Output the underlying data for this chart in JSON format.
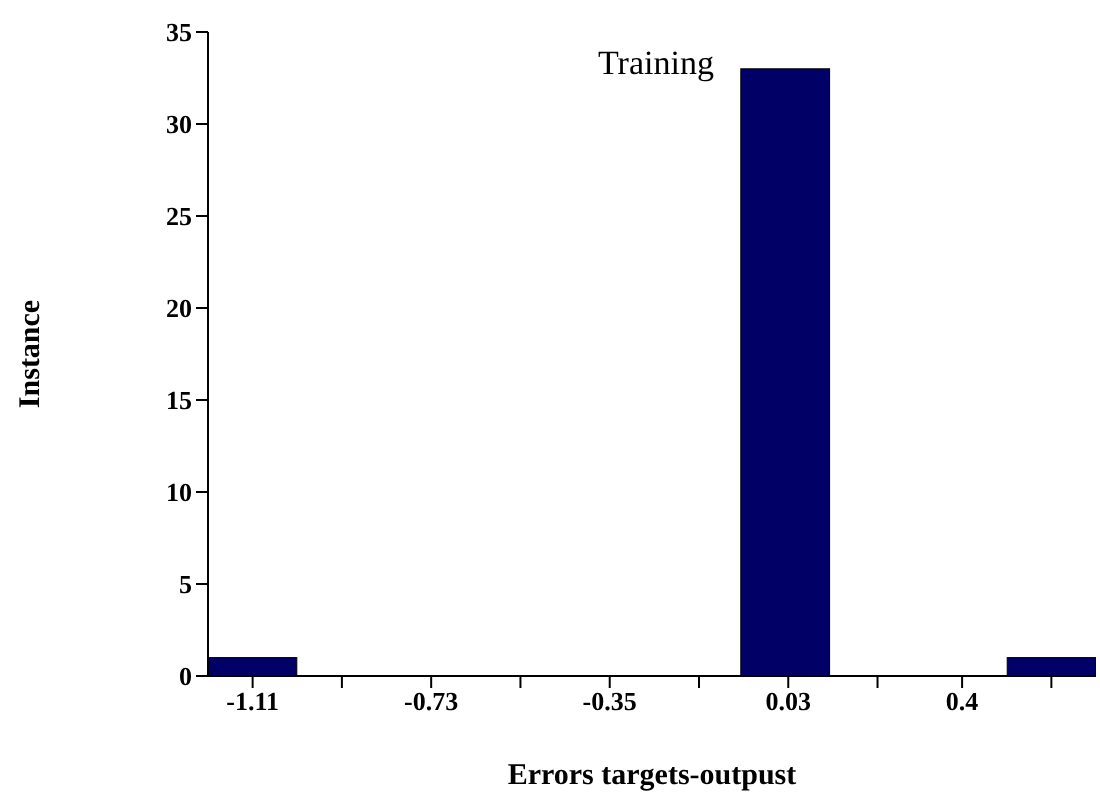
{
  "chart_data": {
    "type": "histogram",
    "xlabel": "Errors targets-outpust",
    "ylabel": "Instance",
    "annotations": [
      "Training"
    ],
    "bins": [
      -1.205,
      -1.016,
      -0.827,
      -0.638,
      -0.449,
      -0.26,
      -0.071,
      0.118,
      0.307,
      0.496,
      0.685
    ],
    "values": [
      1,
      0,
      0,
      0,
      0,
      0,
      33,
      0,
      0,
      1
    ],
    "color": "#000066",
    "xlim": [
      -1.205,
      0.685
    ],
    "xticks": [
      -1.11,
      {
        "value": -0.92,
        "label": null
      },
      -0.73,
      {
        "value": -0.54,
        "label": null
      },
      -0.35,
      {
        "value": -0.16,
        "label": null
      },
      0.03,
      {
        "value": 0.22,
        "label": null
      },
      0.4,
      {
        "value": 0.59,
        "label": null
      }
    ],
    "ylim": [
      0,
      35
    ],
    "yticks": [
      0,
      5,
      10,
      15,
      20,
      25,
      30,
      35
    ]
  }
}
